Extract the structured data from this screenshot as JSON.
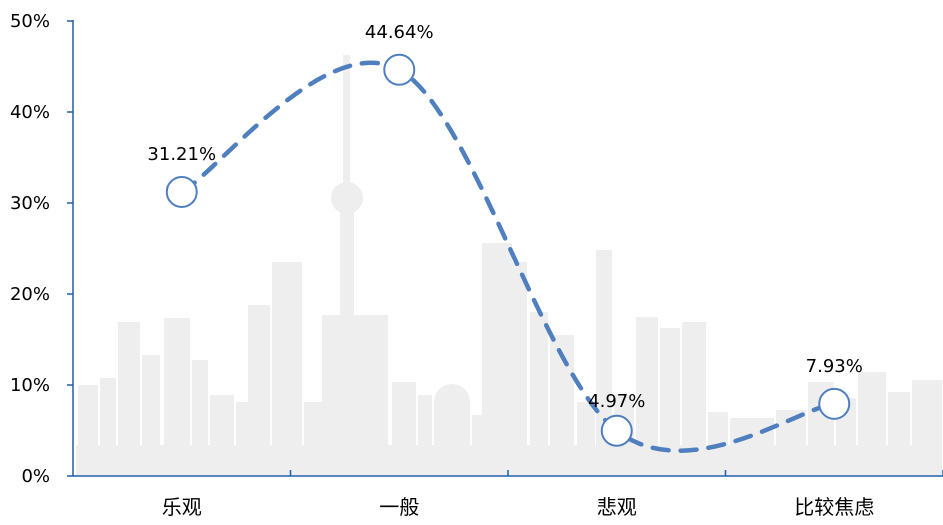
{
  "chart_data": {
    "type": "line",
    "title": "",
    "xlabel": "",
    "ylabel": "",
    "categories": [
      "乐观",
      "一般",
      "悲观",
      "比较焦虑"
    ],
    "values": [
      31.21,
      44.64,
      4.97,
      7.93
    ],
    "data_labels": [
      "31.21%",
      "44.64%",
      "4.97%",
      "7.93%"
    ],
    "ylim": [
      0,
      50
    ],
    "yticks": [
      0,
      10,
      20,
      30,
      40,
      50
    ],
    "ytick_labels": [
      "0%",
      "10%",
      "20%",
      "30%",
      "40%",
      "50%"
    ],
    "line_style": "dashed-smooth",
    "marker": "open-circle",
    "legend": "none",
    "grid": false,
    "background": "city-skyline-silhouette"
  },
  "colors": {
    "series": "#4f7fbf",
    "axis": "#1f5fa8",
    "skyline": "#eeeeee",
    "marker_fill": "#ffffff"
  }
}
